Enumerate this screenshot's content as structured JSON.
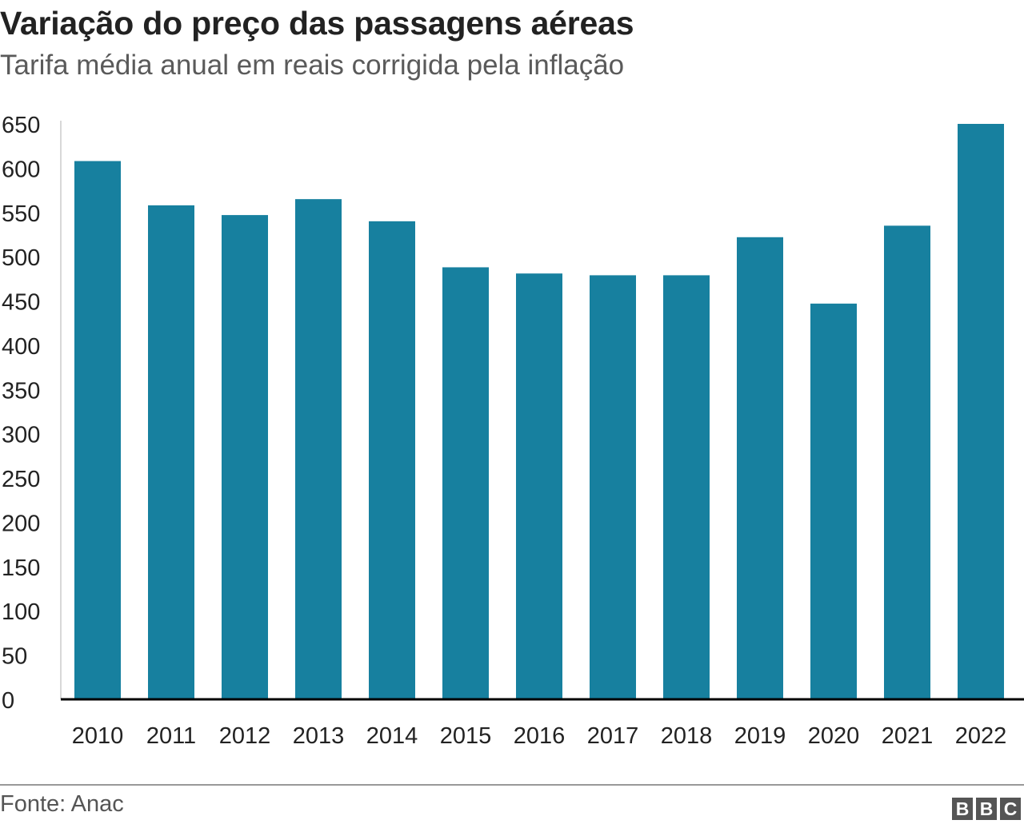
{
  "header": {
    "title": "Variação do preço das passagens aéreas",
    "subtitle": "Tarifa média anual em reais corrigida pela inflação"
  },
  "footer": {
    "source": "Fonte: Anac",
    "logo_text": "BBC"
  },
  "colors": {
    "bar": "#17809f",
    "axis": "#000000",
    "gridline": "#cccccc"
  },
  "chart_data": {
    "type": "bar",
    "title": "Variação do preço das passagens aéreas",
    "subtitle": "Tarifa média anual em reais corrigida pela inflação",
    "xlabel": "",
    "ylabel": "",
    "categories": [
      "2010",
      "2011",
      "2012",
      "2013",
      "2014",
      "2015",
      "2016",
      "2017",
      "2018",
      "2019",
      "2020",
      "2021",
      "2022"
    ],
    "values": [
      608,
      558,
      547,
      565,
      540,
      488,
      481,
      479,
      479,
      522,
      447,
      535,
      650
    ],
    "ylim": [
      0,
      650
    ],
    "yticks": [
      0,
      50,
      100,
      150,
      200,
      250,
      300,
      350,
      400,
      450,
      500,
      550,
      600,
      650
    ],
    "grid": false
  }
}
